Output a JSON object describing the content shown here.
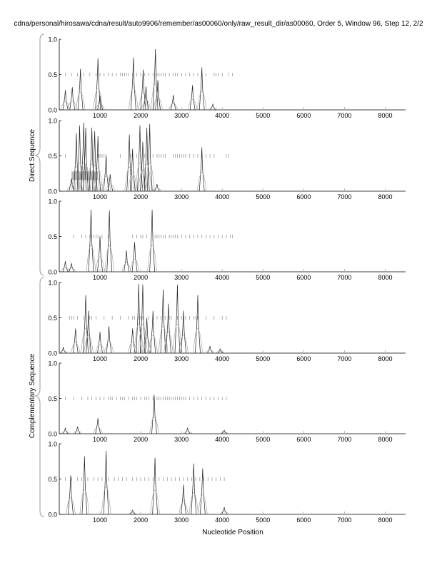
{
  "title": "cdna/personal/hirosawa/cdna/result/auto9906/remember/as00060/only/raw_result_dir/as00060, Order 5, Window 96, Step 12, 2/2",
  "chart_data": {
    "type": "line",
    "xlabel": "Nucleotide Position",
    "group_labels": [
      "Direct Sequence",
      "Complementary Sequence"
    ],
    "xlim": [
      0,
      8500
    ],
    "ylim": [
      0,
      1
    ],
    "xticks": [
      1000,
      2000,
      3000,
      4000,
      5000,
      6000,
      7000,
      8000
    ],
    "xtick_labels": [
      "1000",
      "2000",
      "3000",
      "4000",
      "5000",
      "6000",
      "7000",
      "8000"
    ],
    "ytick_labels": [
      "0.0",
      "0.5",
      "1.0"
    ],
    "panels": [
      {
        "group": "Direct Sequence",
        "peaks": [
          [
            150,
            0.28
          ],
          [
            320,
            0.32
          ],
          [
            520,
            0.58
          ],
          [
            950,
            0.73
          ],
          [
            1000,
            0.2
          ],
          [
            1820,
            0.74
          ],
          [
            2060,
            0.57
          ],
          [
            2130,
            0.33
          ],
          [
            2360,
            0.86
          ],
          [
            2420,
            0.42
          ],
          [
            2800,
            0.21
          ],
          [
            3270,
            0.35
          ],
          [
            3500,
            0.6
          ],
          [
            3770,
            0.08
          ]
        ],
        "ticks": [
          150,
          300,
          450,
          600,
          750,
          900,
          1000,
          1100,
          1200,
          1300,
          1400,
          1500,
          1550,
          1600,
          1650,
          1700,
          1800,
          1900,
          2000,
          2100,
          2200,
          2300,
          2400,
          2450,
          2500,
          2550,
          2600,
          2700,
          2800,
          2850,
          2900,
          3000,
          3100,
          3200,
          3300,
          3400,
          3500,
          3600,
          3800,
          3850,
          3900,
          4000,
          4150,
          4250
        ]
      },
      {
        "group": "Direct Sequence",
        "peaks": [
          [
            300,
            0.18
          ],
          [
            420,
            0.82
          ],
          [
            500,
            0.93
          ],
          [
            600,
            0.97
          ],
          [
            650,
            0.9
          ],
          [
            800,
            0.9
          ],
          [
            870,
            0.85
          ],
          [
            950,
            0.78
          ],
          [
            1150,
            0.5
          ],
          [
            1250,
            0.24
          ],
          [
            1720,
            0.8
          ],
          [
            1800,
            0.6
          ],
          [
            1980,
            0.93
          ],
          [
            2050,
            0.7
          ],
          [
            2150,
            0.9
          ],
          [
            2220,
            0.95
          ],
          [
            2400,
            0.1
          ],
          [
            3500,
            0.62
          ]
        ],
        "ticks": [
          150,
          950,
          1000,
          1050,
          1100,
          1150,
          1500,
          1750,
          1900,
          2000,
          2100,
          2300,
          2400,
          2450,
          2500,
          2550,
          2600,
          2800,
          2850,
          2900,
          2950,
          3000,
          3050,
          3100,
          3200,
          3300,
          3400,
          3500,
          3600,
          3700,
          3800,
          4100,
          4150
        ],
        "highlight": [
          300,
          950,
          0.16,
          0.28
        ]
      },
      {
        "group": "Direct Sequence",
        "peaks": [
          [
            150,
            0.15
          ],
          [
            300,
            0.12
          ],
          [
            780,
            0.88
          ],
          [
            1000,
            0.5
          ],
          [
            1230,
            0.87
          ],
          [
            1650,
            0.3
          ],
          [
            1850,
            0.42
          ],
          [
            2280,
            0.88
          ]
        ],
        "ticks": [
          350,
          550,
          650,
          750,
          800,
          850,
          900,
          950,
          1050,
          1200,
          1800,
          1900,
          2000,
          2050,
          2150,
          2350,
          2400,
          2450,
          2500,
          2550,
          2600,
          2700,
          2750,
          2800,
          2850,
          2900,
          3000,
          3100,
          3200,
          3300,
          3400,
          3500,
          3600,
          3700,
          3800,
          3900,
          4000,
          4100,
          4200,
          4250
        ]
      },
      {
        "group": "Complementary Sequence",
        "peaks": [
          [
            100,
            0.08
          ],
          [
            400,
            0.35
          ],
          [
            650,
            0.82
          ],
          [
            720,
            0.6
          ],
          [
            1000,
            0.3
          ],
          [
            1220,
            0.38
          ],
          [
            1800,
            0.35
          ],
          [
            1950,
            0.98
          ],
          [
            2050,
            0.97
          ],
          [
            2150,
            0.5
          ],
          [
            2300,
            0.6
          ],
          [
            2550,
            0.9
          ],
          [
            2680,
            0.7
          ],
          [
            2900,
            0.97
          ],
          [
            3050,
            0.6
          ],
          [
            3400,
            0.82
          ],
          [
            3700,
            0.1
          ],
          [
            3950,
            0.06
          ]
        ],
        "ticks": [
          250,
          300,
          350,
          450,
          600,
          750,
          800,
          900,
          1100,
          1300,
          1500,
          1700,
          1800,
          1850,
          1950,
          2000,
          2050,
          2200,
          2300,
          2400,
          2500,
          2600,
          2700,
          2750,
          2900,
          3000,
          3050,
          3100,
          3200,
          3300,
          3350,
          3400,
          3600,
          3800,
          4000,
          4100
        ]
      },
      {
        "group": "Complementary Sequence",
        "peaks": [
          [
            150,
            0.08
          ],
          [
            450,
            0.1
          ],
          [
            950,
            0.22
          ],
          [
            2330,
            0.55
          ],
          [
            3150,
            0.08
          ],
          [
            4050,
            0.05
          ]
        ],
        "ticks": [
          150,
          350,
          550,
          700,
          800,
          900,
          1000,
          1100,
          1200,
          1250,
          1300,
          1400,
          1500,
          1550,
          1600,
          1700,
          1800,
          1850,
          1900,
          2000,
          2100,
          2150,
          2200,
          2300,
          2400,
          2450,
          2500,
          2550,
          2600,
          2650,
          2700,
          2750,
          2800,
          2850,
          2900,
          2950,
          3000,
          3050,
          3100,
          3200,
          3300,
          3400,
          3500,
          3600,
          3700,
          3800,
          3900,
          4000,
          4100
        ]
      },
      {
        "group": "Complementary Sequence",
        "peaks": [
          [
            280,
            0.55
          ],
          [
            620,
            0.82
          ],
          [
            1150,
            0.9
          ],
          [
            1800,
            0.06
          ],
          [
            2350,
            0.8
          ],
          [
            3050,
            0.42
          ],
          [
            3300,
            0.72
          ],
          [
            3520,
            0.65
          ],
          [
            4050,
            0.1
          ]
        ],
        "ticks": [
          150,
          300,
          450,
          550,
          700,
          850,
          950,
          1050,
          1200,
          1350,
          1450,
          1550,
          1650,
          1800,
          1900,
          2000,
          2100,
          2200,
          2300,
          2450,
          2550,
          2650,
          2750,
          2850,
          2950,
          3050,
          3150,
          3250,
          3350,
          3450,
          3550,
          3650,
          3750,
          3850,
          3950,
          4050
        ]
      }
    ]
  }
}
